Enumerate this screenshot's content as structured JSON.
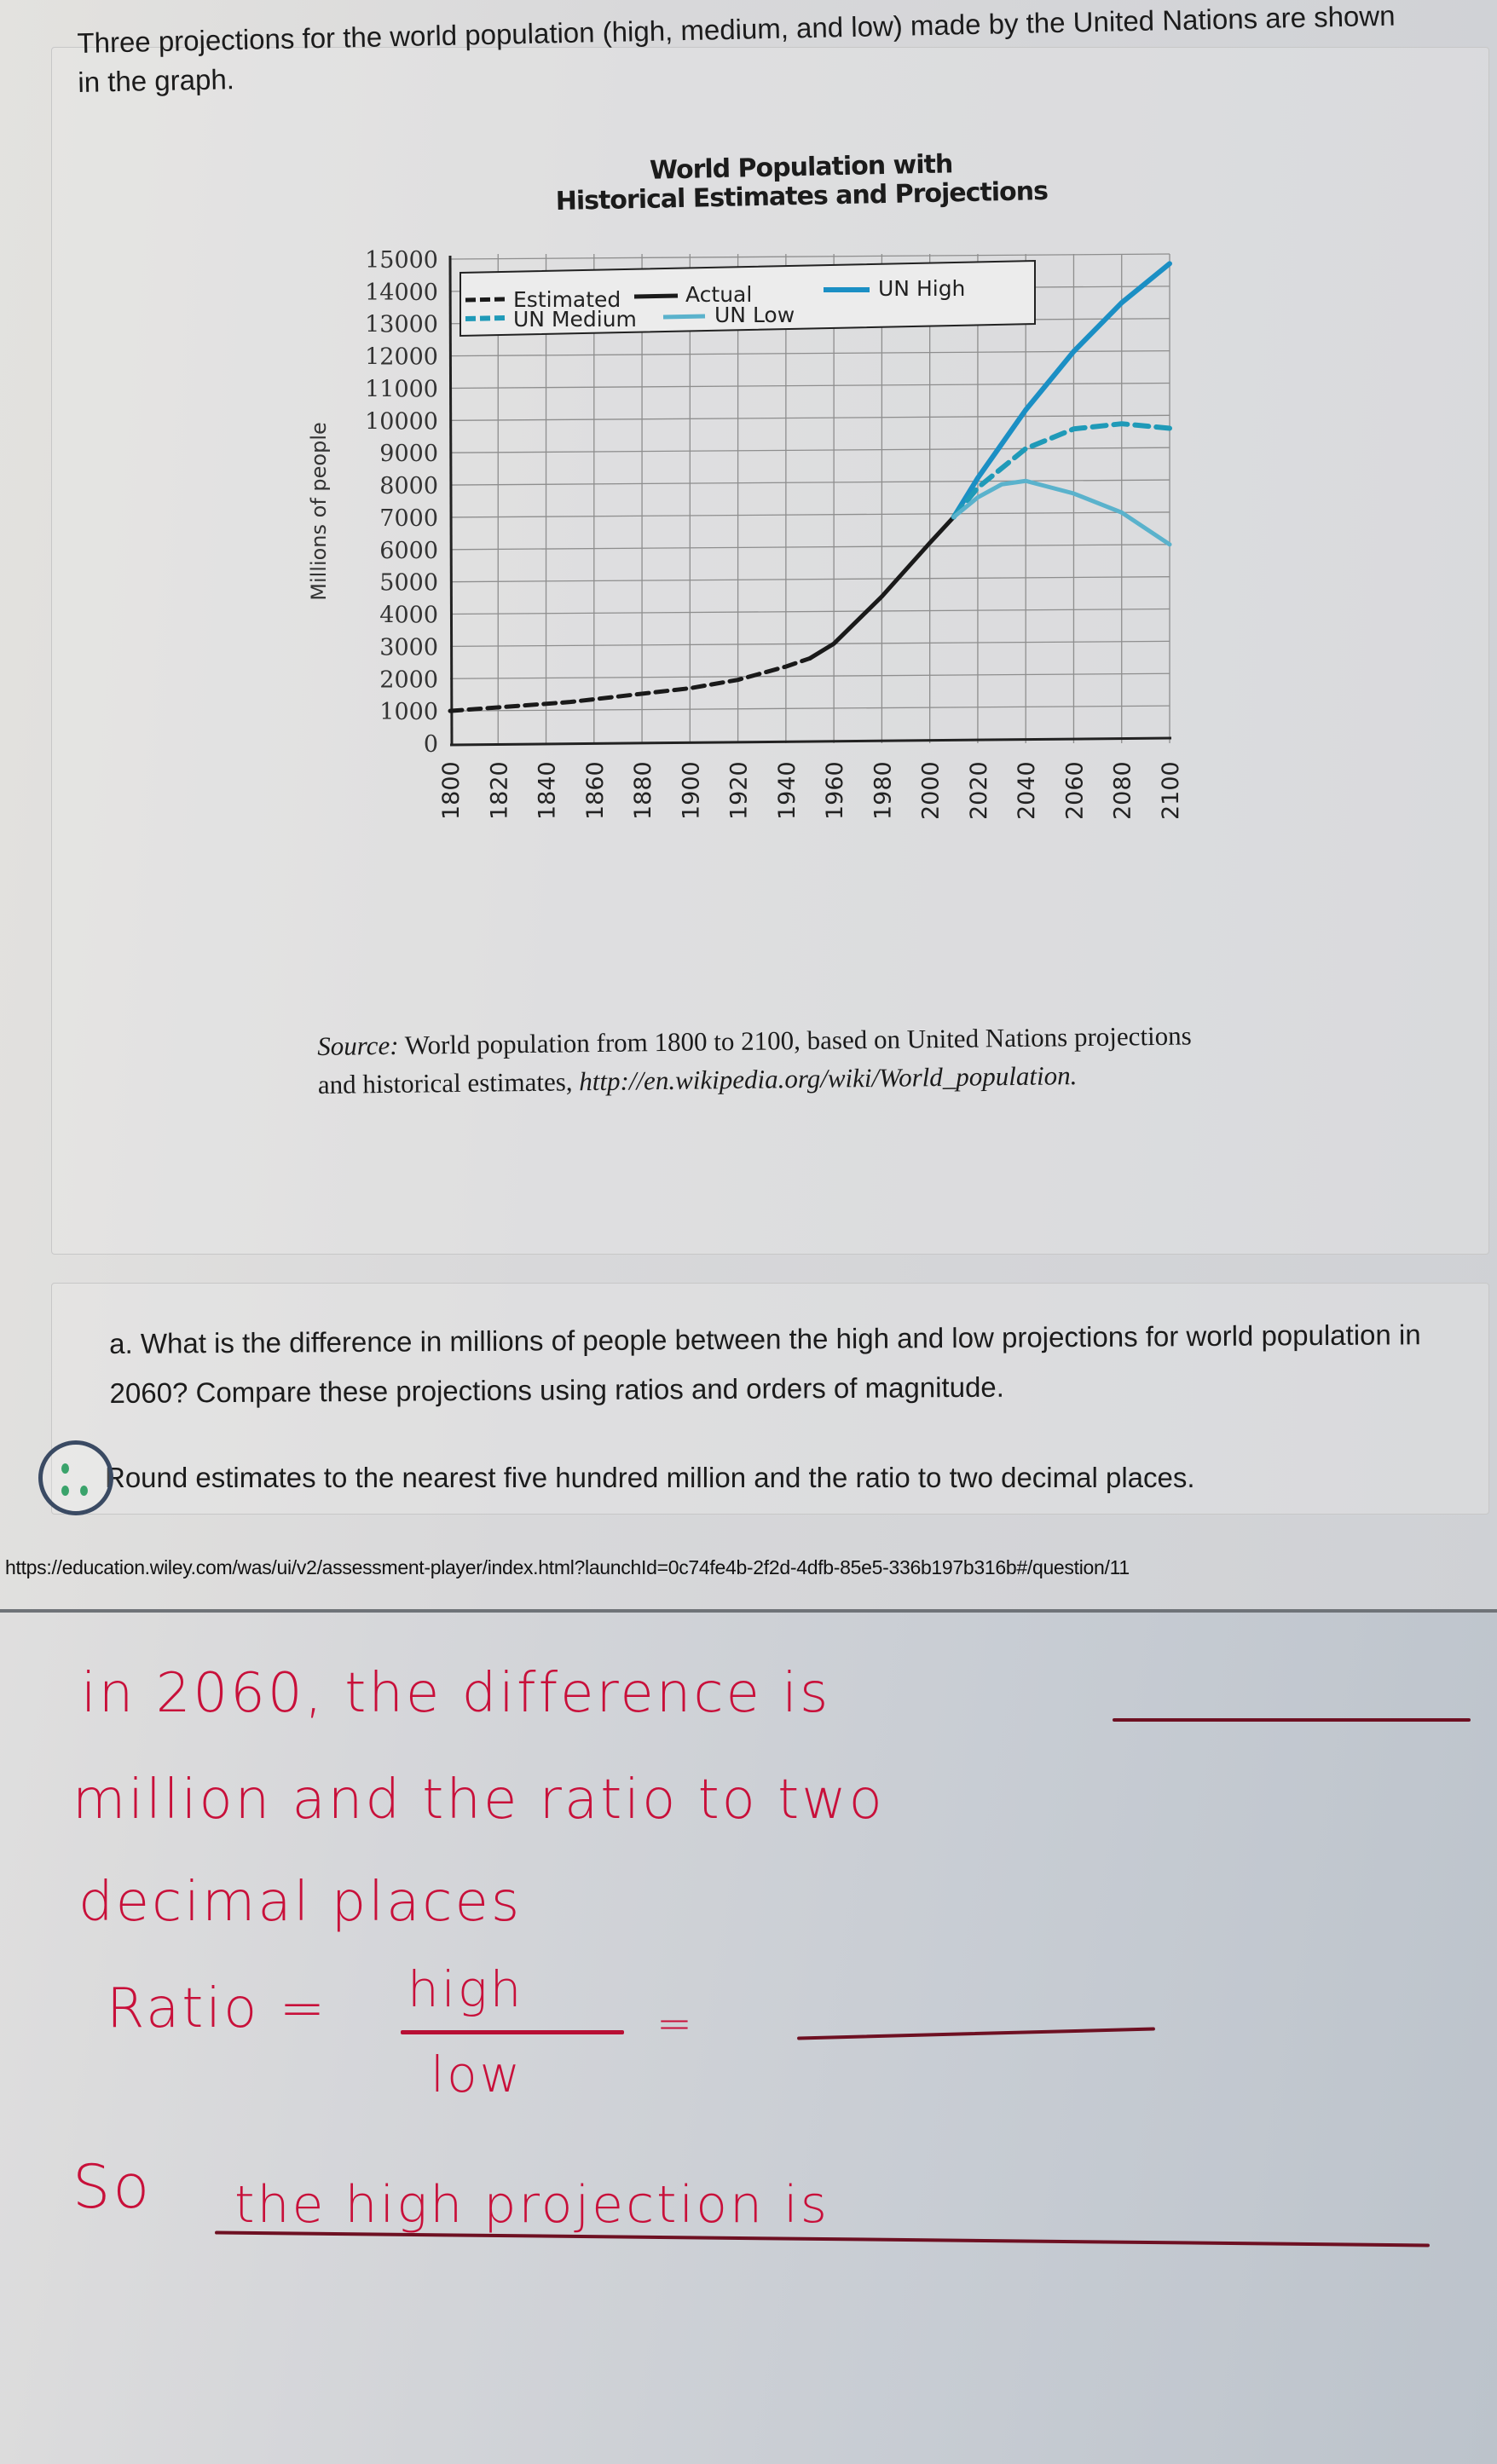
{
  "intro_text": "Three projections for the world population (high, medium, and low) made by the United Nations are shown in the graph.",
  "chart": {
    "title_line1": "World Population with",
    "title_line2": "Historical Estimates and Projections",
    "ylabel": "Millions of people",
    "yticks": [
      "15000",
      "14000",
      "13000",
      "12000",
      "11000",
      "10000",
      "9000",
      "8000",
      "7000",
      "6000",
      "5000",
      "4000",
      "3000",
      "2000",
      "1000",
      "0"
    ],
    "xticks": [
      "1800",
      "1820",
      "1840",
      "1860",
      "1880",
      "1900",
      "1920",
      "1940",
      "1960",
      "1980",
      "2000",
      "2020",
      "2040",
      "2060",
      "2080",
      "2100"
    ],
    "legend": {
      "estimated": "Estimated",
      "actual": "Actual",
      "un_high": "UN High",
      "un_medium": "UN Medium",
      "un_low": "UN Low"
    },
    "colors": {
      "estimated": "#1a1a1a",
      "actual": "#1a1a1a",
      "un_high": "#1b8fc4",
      "un_medium": "#1f9ab8",
      "un_low": "#5ab2cc"
    }
  },
  "source": {
    "label": "Source:",
    "text": " World population from 1800 to 2100, based on United Nations projections and historical estimates, ",
    "link": "http://en.wikipedia.org/wiki/World_population."
  },
  "question": {
    "text": "a. What is the difference in millions of people between the high and low projections for world population in 2060? Compare these projections using ratios and orders of magnitude.",
    "hint": "Round estimates to the nearest five hundred million and the ratio to two decimal places."
  },
  "url": "https://education.wiley.com/was/ui/v2/assessment-player/index.html?launchId=0c74fe4b-2f2d-4dfb-85e5-336b197b316b#/question/11",
  "notes": {
    "line1": "in 2060, the difference is",
    "line2": "million and the ratio to two",
    "line3": "decimal places",
    "ratio_label": "Ratio =",
    "ratio_num": "high",
    "ratio_den": "low",
    "ratio_eq": "=",
    "so_label": "So",
    "so_text": "the high projection is"
  },
  "chart_data": {
    "type": "line",
    "title": "World Population with Historical Estimates and Projections",
    "xlabel": "",
    "ylabel": "Millions of people",
    "xlim": [
      1800,
      2100
    ],
    "ylim": [
      0,
      15000
    ],
    "grid": true,
    "legend_position": "top (inside plot)",
    "series": [
      {
        "name": "Estimated",
        "style": "dashed black",
        "x": [
          1800,
          1850,
          1900,
          1920,
          1940,
          1950
        ],
        "values": [
          1000,
          1250,
          1650,
          1900,
          2300,
          2550
        ]
      },
      {
        "name": "Actual",
        "style": "solid black",
        "x": [
          1950,
          1960,
          1980,
          2000,
          2010
        ],
        "values": [
          2550,
          3000,
          4450,
          6100,
          6900
        ]
      },
      {
        "name": "UN High",
        "style": "solid blue",
        "x": [
          2010,
          2020,
          2040,
          2060,
          2080,
          2100
        ],
        "values": [
          6900,
          8100,
          10200,
          12000,
          13500,
          14700
        ]
      },
      {
        "name": "UN Medium",
        "style": "dashed blue",
        "x": [
          2010,
          2020,
          2040,
          2060,
          2080,
          2100
        ],
        "values": [
          6900,
          7800,
          9000,
          9600,
          9750,
          9600
        ]
      },
      {
        "name": "UN Low",
        "style": "solid light blue",
        "x": [
          2010,
          2020,
          2030,
          2040,
          2060,
          2080,
          2100
        ],
        "values": [
          6900,
          7500,
          7900,
          8000,
          7600,
          7000,
          6000
        ]
      }
    ]
  }
}
